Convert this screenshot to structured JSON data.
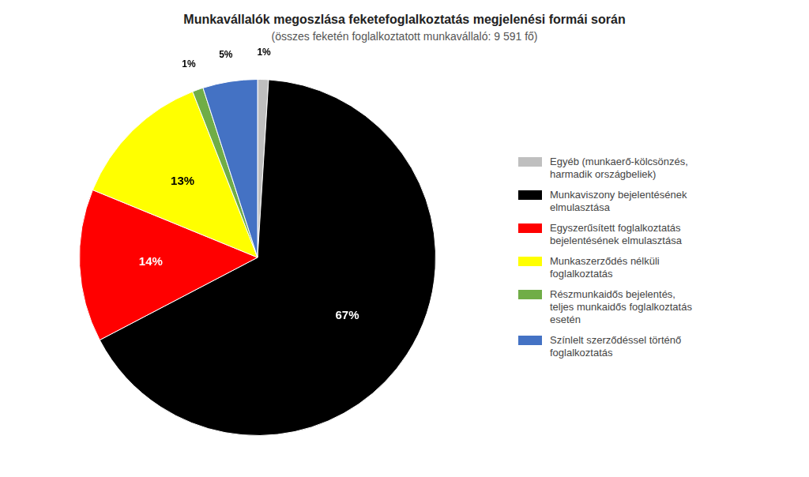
{
  "chart_data": {
    "type": "pie",
    "title": "Munkavállalók megoszlása feketefoglalkoztatás megjelenési formái során",
    "subtitle": "(összes feketén foglalkoztatott munkavállaló: 9 591 fő)",
    "categories": [
      "Egyéb (munkaerő-kölcsönzés,\nharmadik országbeliek)",
      "Munkaviszony bejelentésének\nelmulasztása",
      "Egyszerűsített foglalkoztatás\nbejelentésének elmulasztása",
      "Munkaszerződés nélküli\nfoglalkoztatás",
      "Részmunkaidős bejelentés,\nteljes munkaidős foglalkoztatás\nesetén",
      "Színlelt szerződéssel történő\nfoglalkoztatás"
    ],
    "values": [
      1,
      67,
      14,
      13,
      1,
      5
    ],
    "value_labels": [
      "1%",
      "67%",
      "14%",
      "13%",
      "1%",
      "5%"
    ],
    "colors": [
      "#bfbfbf",
      "#000000",
      "#ff0000",
      "#ffff00",
      "#70ad47",
      "#4472c4"
    ],
    "data_labels": true,
    "legend": "right"
  }
}
